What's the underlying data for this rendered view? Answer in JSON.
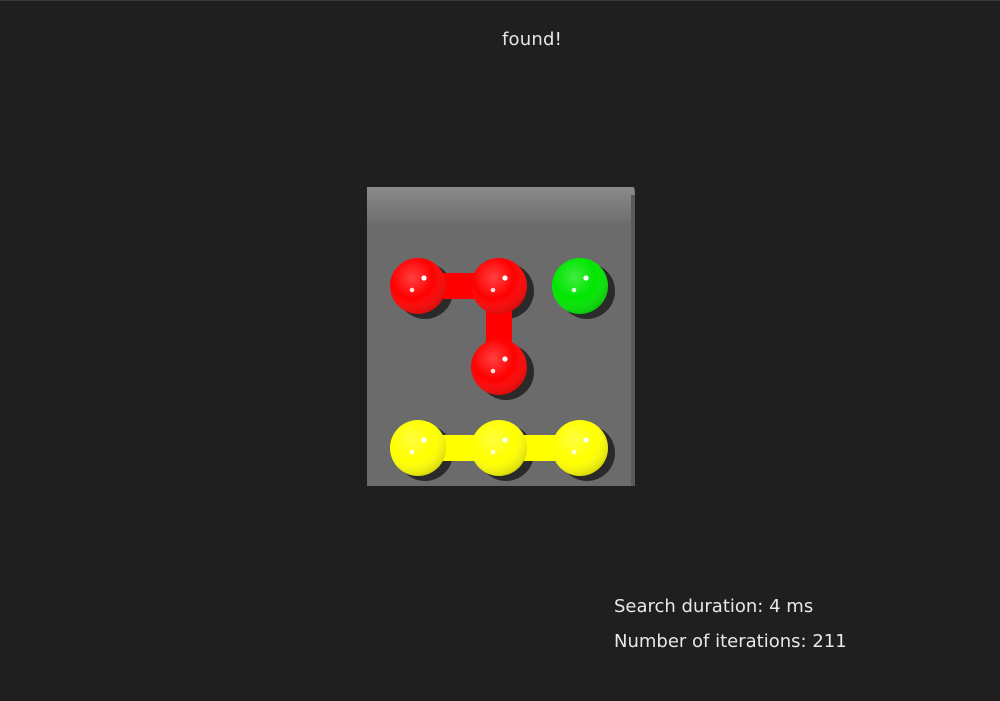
{
  "status": {
    "text": "found!"
  },
  "puzzle": {
    "board_color": "#6b6b6b",
    "board_top_color": "#7d7d7d",
    "hole_color": "#2a2a2a",
    "pieces": [
      {
        "name": "red-piece",
        "color": "#ff0000",
        "cells": [
          [
            0,
            0
          ],
          [
            1,
            0
          ],
          [
            1,
            1
          ]
        ]
      },
      {
        "name": "green-piece",
        "color": "#00e600",
        "cells": [
          [
            2,
            0
          ]
        ]
      },
      {
        "name": "yellow-piece",
        "color": "#ffff00",
        "cells": [
          [
            0,
            2
          ],
          [
            1,
            2
          ],
          [
            2,
            2
          ]
        ]
      }
    ]
  },
  "stats": {
    "duration_label": "Search duration:",
    "duration_value": "4",
    "duration_unit": "ms",
    "iterations_label": "Number of iterations:",
    "iterations_value": "211"
  }
}
